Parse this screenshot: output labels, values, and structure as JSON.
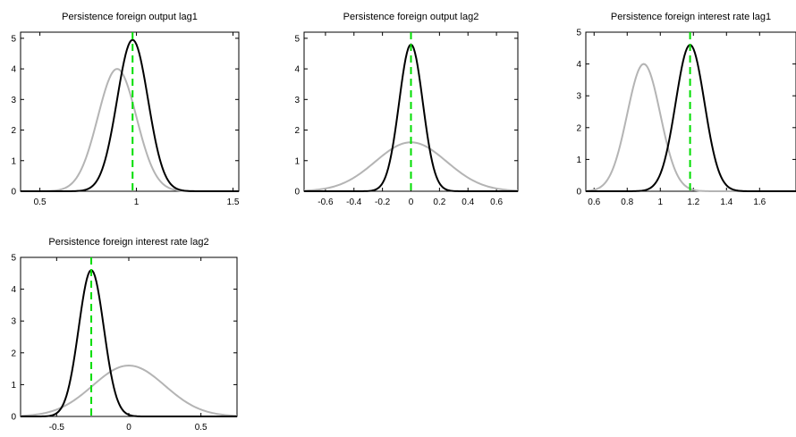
{
  "colors": {
    "prior": "#b4b4b4",
    "posterior": "#000000",
    "mode": "#00dd00"
  },
  "chart_data": [
    {
      "type": "line",
      "title": "Persistence foreign output lag1",
      "xlim": [
        0.4,
        1.53
      ],
      "ylim": [
        0,
        5.2
      ],
      "xticks": [
        "0.5",
        "1",
        "1.5"
      ],
      "xtick_values": [
        0.5,
        1,
        1.5
      ],
      "yticks": [
        "0",
        "1",
        "2",
        "3",
        "4",
        "5"
      ],
      "series": [
        {
          "role": "prior",
          "mean": 0.9,
          "sd": 0.1,
          "peak": 4.0
        },
        {
          "role": "posterior",
          "mean": 0.98,
          "sd": 0.08,
          "peak": 4.95
        }
      ],
      "mode_line": 0.98
    },
    {
      "type": "line",
      "title": "Persistence foreign output lag2",
      "xlim": [
        -0.75,
        0.75
      ],
      "ylim": [
        0,
        5.2
      ],
      "xticks": [
        "-0.6",
        "-0.4",
        "-0.2",
        "0",
        "0.2",
        "0.4",
        "0.6"
      ],
      "xtick_values": [
        -0.6,
        -0.4,
        -0.2,
        0,
        0.2,
        0.4,
        0.6
      ],
      "yticks": [
        "0",
        "1",
        "2",
        "3",
        "4",
        "5"
      ],
      "series": [
        {
          "role": "prior",
          "mean": 0.0,
          "sd": 0.25,
          "peak": 1.6
        },
        {
          "role": "posterior",
          "mean": 0.0,
          "sd": 0.083,
          "peak": 4.8
        }
      ],
      "mode_line": 0.0
    },
    {
      "type": "line",
      "title": "Persistence foreign interest rate lag1",
      "xlim": [
        0.55,
        1.82
      ],
      "ylim": [
        0,
        5.0
      ],
      "xticks": [
        "0.6",
        "0.8",
        "1",
        "1.2",
        "1.4",
        "1.6"
      ],
      "xtick_values": [
        0.6,
        0.8,
        1,
        1.2,
        1.4,
        1.6
      ],
      "yticks": [
        "0",
        "1",
        "2",
        "3",
        "4",
        "5"
      ],
      "series": [
        {
          "role": "prior",
          "mean": 0.9,
          "sd": 0.1,
          "peak": 4.0
        },
        {
          "role": "posterior",
          "mean": 1.18,
          "sd": 0.087,
          "peak": 4.6
        }
      ],
      "mode_line": 1.18
    },
    {
      "type": "line",
      "title": "Persistence foreign interest rate lag2",
      "xlim": [
        -0.75,
        0.75
      ],
      "ylim": [
        0,
        5.0
      ],
      "xticks": [
        "-0.5",
        "0",
        "0.5"
      ],
      "xtick_values": [
        -0.5,
        0,
        0.5
      ],
      "yticks": [
        "0",
        "1",
        "2",
        "3",
        "4",
        "5"
      ],
      "series": [
        {
          "role": "prior",
          "mean": 0.0,
          "sd": 0.25,
          "peak": 1.6
        },
        {
          "role": "posterior",
          "mean": -0.26,
          "sd": 0.087,
          "peak": 4.6
        }
      ],
      "mode_line": -0.26
    }
  ]
}
